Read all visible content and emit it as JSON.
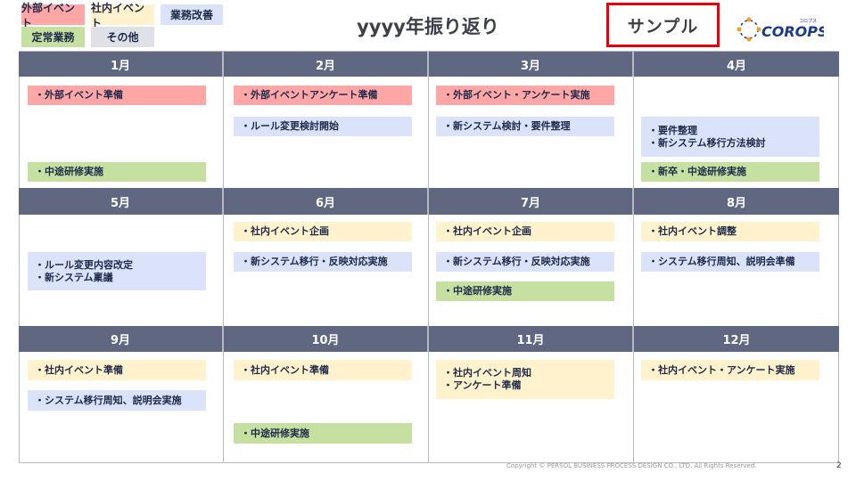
{
  "legend": [
    {
      "label": "外部イベント",
      "color": "#ffa7a7"
    },
    {
      "label": "社内イベント",
      "color": "#fff2cc"
    },
    {
      "label": "業務改善",
      "color": "#dae3fa"
    },
    {
      "label": "定常業務",
      "color": "#c5e0a0"
    },
    {
      "label": "その他",
      "color": "#dee1e6"
    }
  ],
  "title": "yyyy年振り返り",
  "sample_label": "サンプル",
  "logo": {
    "text": "COROPS",
    "kana": "コロプス"
  },
  "months": [
    {
      "label": "1月",
      "items": [
        {
          "lines": [
            "・外部イベント準備"
          ],
          "category": "pink"
        },
        {
          "lines": [
            "・中途研修実施"
          ],
          "category": "green"
        }
      ]
    },
    {
      "label": "2月",
      "items": [
        {
          "lines": [
            "・外部イベントアンケート準備"
          ],
          "category": "pink"
        },
        {
          "lines": [
            "・ルール変更検討開始"
          ],
          "category": "blue"
        }
      ]
    },
    {
      "label": "3月",
      "items": [
        {
          "lines": [
            "・外部イベント・アンケート実施"
          ],
          "category": "pink"
        },
        {
          "lines": [
            "・新システム検討・要件整理"
          ],
          "category": "blue"
        }
      ]
    },
    {
      "label": "4月",
      "items": [
        {
          "lines": [
            "・要件整理",
            "・新システム移行方法検討"
          ],
          "category": "blue"
        },
        {
          "lines": [
            "・新卒・中途研修実施"
          ],
          "category": "green"
        }
      ]
    },
    {
      "label": "5月",
      "items": [
        {
          "lines": [
            "・ルール変更内容改定",
            "・新システム稟議"
          ],
          "category": "blue"
        }
      ]
    },
    {
      "label": "6月",
      "items": [
        {
          "lines": [
            "・社内イベント企画"
          ],
          "category": "yellow"
        },
        {
          "lines": [
            "・新システム移行・反映対応実施"
          ],
          "category": "blue"
        }
      ]
    },
    {
      "label": "7月",
      "items": [
        {
          "lines": [
            "・社内イベント企画"
          ],
          "category": "yellow"
        },
        {
          "lines": [
            "・新システム移行・反映対応実施"
          ],
          "category": "blue"
        },
        {
          "lines": [
            "・中途研修実施"
          ],
          "category": "green"
        }
      ]
    },
    {
      "label": "8月",
      "items": [
        {
          "lines": [
            "・社内イベント調整"
          ],
          "category": "yellow"
        },
        {
          "lines": [
            "・システム移行周知、説明会準備"
          ],
          "category": "blue"
        }
      ]
    },
    {
      "label": "9月",
      "items": [
        {
          "lines": [
            "・社内イベント準備"
          ],
          "category": "yellow"
        },
        {
          "lines": [
            "・システム移行周知、説明会実施"
          ],
          "category": "blue"
        }
      ]
    },
    {
      "label": "10月",
      "items": [
        {
          "lines": [
            "・社内イベント準備"
          ],
          "category": "yellow"
        },
        {
          "lines": [
            "・中途研修実施"
          ],
          "category": "green"
        }
      ]
    },
    {
      "label": "11月",
      "items": [
        {
          "lines": [
            "・社内イベント周知",
            "・アンケート準備"
          ],
          "category": "yellow"
        }
      ]
    },
    {
      "label": "12月",
      "items": [
        {
          "lines": [
            "・社内イベント・アンケート実施"
          ],
          "category": "yellow"
        }
      ]
    }
  ],
  "footer": {
    "copyright": "Copyright © PERSOL BUSINESS PROCESS DESIGN CO., LTD. All Rights Reserved.",
    "page": "2"
  }
}
